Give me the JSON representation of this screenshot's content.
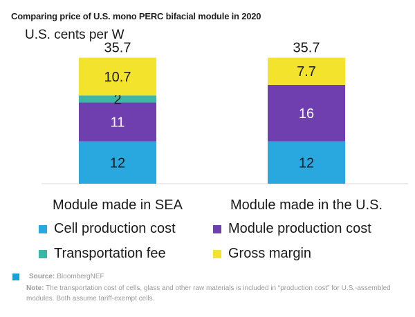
{
  "chart_data": {
    "type": "bar",
    "stacked": true,
    "title": "Comparing price of U.S. mono PERC bifacial module in 2020",
    "ylabel": "U.S. cents per W",
    "categories": [
      "Module made in SEA",
      "Module made in the U.S."
    ],
    "totals": [
      "35.7",
      "35.7"
    ],
    "series": [
      {
        "name": "Cell production cost",
        "color": "#29a8e0",
        "values": [
          12,
          12
        ]
      },
      {
        "name": "Module production cost",
        "color": "#6f3fb0",
        "values": [
          11,
          16
        ]
      },
      {
        "name": "Transportation fee",
        "color": "#3ab8a4",
        "values": [
          2,
          0
        ]
      },
      {
        "name": "Gross margin",
        "color": "#f4e32d",
        "values": [
          10.7,
          7.7
        ]
      }
    ],
    "ylim": [
      0,
      36
    ],
    "grid": false,
    "legend_position": "bottom"
  },
  "legend": [
    {
      "label": "Cell production cost",
      "color": "#29a8e0"
    },
    {
      "label": "Module production cost",
      "color": "#6f3fb0"
    },
    {
      "label": "Transportation fee",
      "color": "#3ab8a4"
    },
    {
      "label": "Gross margin",
      "color": "#f4e32d"
    }
  ],
  "source": {
    "label": "Source:",
    "text": "BloombergNEF",
    "color": "#1aa0d6"
  },
  "note": {
    "label": "Note:",
    "text": "The transportation cost of cells, glass and other raw materials is included in “production cost” for U.S.-assembled modules. Both assume tariff-exempt cells."
  }
}
